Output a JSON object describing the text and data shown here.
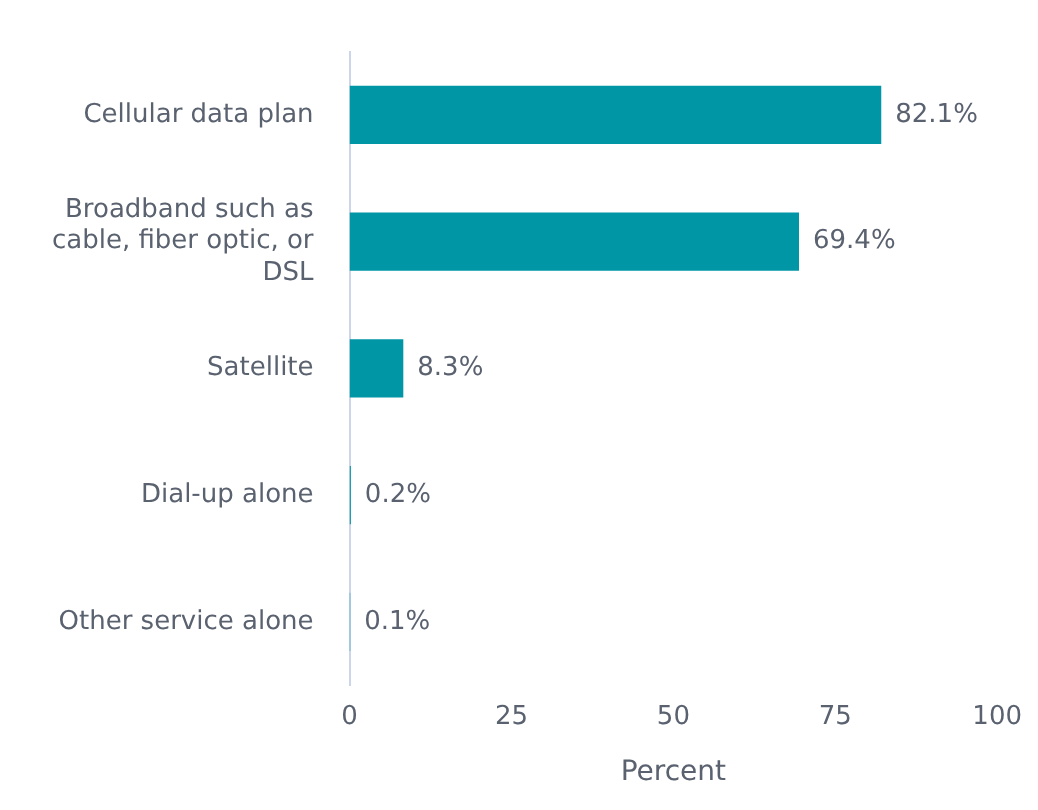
{
  "chart_data": {
    "type": "bar",
    "orientation": "horizontal",
    "categories": [
      "Cellular data plan",
      "Broadband such as cable, fiber optic, or DSL",
      "Satellite",
      "Dial-up alone",
      "Other service alone"
    ],
    "values": [
      82.1,
      69.4,
      8.3,
      0.2,
      0.1
    ],
    "value_labels": [
      "82.1%",
      "69.4%",
      "8.3%",
      "0.2%",
      "0.1%"
    ],
    "color": "#0096a6",
    "xlabel": "Percent",
    "xlim": [
      0,
      100
    ],
    "xticks": [
      0,
      25,
      50,
      75,
      100
    ],
    "grid": false,
    "legend": false
  }
}
